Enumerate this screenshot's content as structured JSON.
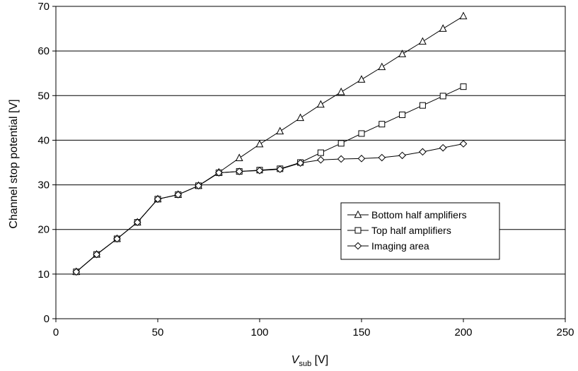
{
  "chart_data": {
    "type": "line",
    "title": "",
    "xlabel": {
      "main": "V",
      "subscript": "sub",
      "unit": " [V]"
    },
    "ylabel": "Channel stop potential [V]",
    "xlim": [
      0,
      250
    ],
    "ylim": [
      0,
      70
    ],
    "x_ticks": [
      "0",
      "50",
      "100",
      "150",
      "200",
      "250"
    ],
    "y_ticks": [
      "0",
      "10",
      "20",
      "30",
      "40",
      "50",
      "60",
      "70"
    ],
    "grid": "horizontal",
    "legend_position": "inside-bottom-right",
    "series": [
      {
        "name": "Bottom half amplifiers",
        "marker": "triangle",
        "x": [
          10,
          20,
          30,
          40,
          50,
          60,
          70,
          80,
          90,
          100,
          110,
          120,
          130,
          140,
          150,
          160,
          170,
          180,
          190,
          200
        ],
        "y": [
          10.5,
          14.4,
          17.9,
          21.6,
          26.8,
          27.8,
          29.8,
          32.8,
          36.0,
          39.1,
          42.0,
          45.0,
          48.0,
          50.8,
          53.6,
          56.4,
          59.3,
          62.1,
          65.0,
          67.8
        ]
      },
      {
        "name": "Top half amplifiers",
        "marker": "square",
        "x": [
          10,
          20,
          30,
          40,
          50,
          60,
          70,
          80,
          90,
          100,
          110,
          120,
          130,
          140,
          150,
          160,
          170,
          180,
          190,
          200
        ],
        "y": [
          10.5,
          14.4,
          17.9,
          21.6,
          26.8,
          27.8,
          29.8,
          32.7,
          33.0,
          33.3,
          33.6,
          35.0,
          37.2,
          39.3,
          41.5,
          43.6,
          45.7,
          47.8,
          49.9,
          52.0
        ]
      },
      {
        "name": "Imaging area",
        "marker": "diamond",
        "x": [
          10,
          20,
          30,
          40,
          50,
          60,
          70,
          80,
          90,
          100,
          110,
          120,
          130,
          140,
          150,
          160,
          170,
          180,
          190,
          200
        ],
        "y": [
          10.5,
          14.4,
          17.9,
          21.6,
          26.8,
          27.8,
          29.8,
          32.7,
          33.0,
          33.2,
          33.5,
          34.9,
          35.6,
          35.8,
          35.9,
          36.1,
          36.6,
          37.4,
          38.3,
          39.2
        ]
      }
    ]
  }
}
